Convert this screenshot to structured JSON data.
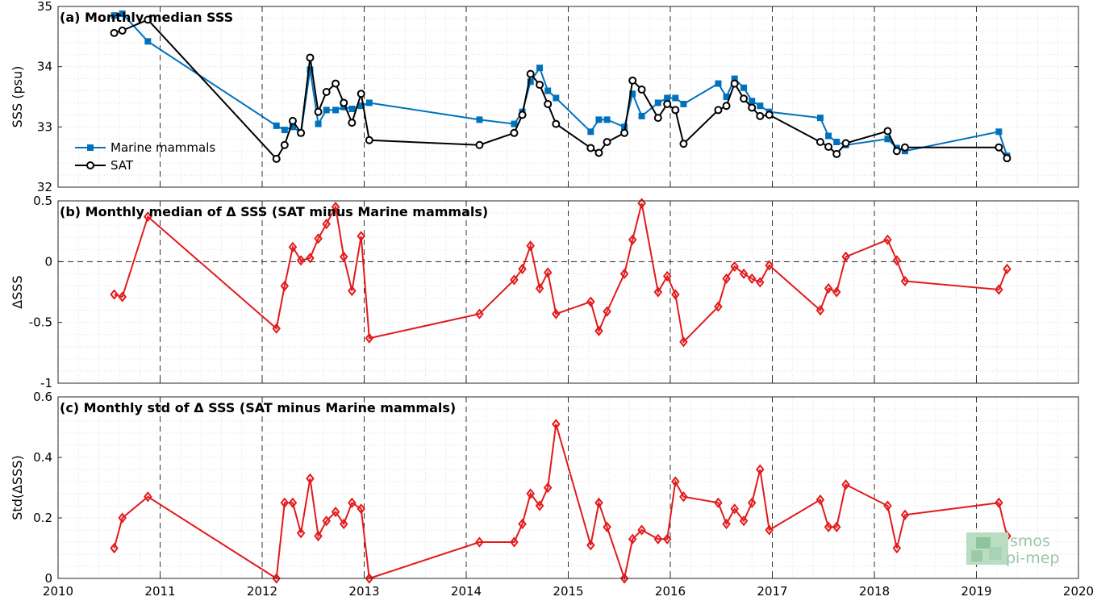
{
  "figure": {
    "watermark": {
      "line1": "smos",
      "line2": "pi-mep"
    }
  },
  "chart_data": [
    {
      "type": "line",
      "panel_id": "a",
      "title": "(a) Monthly median SSS",
      "xlabel": "",
      "ylabel": "SSS (psu)",
      "xlim": [
        2010,
        2020
      ],
      "ylim": [
        32,
        35
      ],
      "x_ticks": [
        2010,
        2011,
        2012,
        2013,
        2014,
        2015,
        2016,
        2017,
        2018,
        2019,
        2020
      ],
      "x_tick_labels": [
        "",
        "",
        "",
        "",
        "",
        "",
        "",
        "",
        "",
        "",
        ""
      ],
      "y_ticks": [
        32,
        33,
        34,
        35
      ],
      "y_tick_labels": [
        "32",
        "33",
        "34",
        "35"
      ],
      "year_boundaries": [
        2011,
        2012,
        2013,
        2014,
        2015,
        2016,
        2017,
        2018,
        2019
      ],
      "grid": "minor dotted",
      "legend_position": "lower-left",
      "series": [
        {
          "name": "Marine mammals",
          "color": "#0072bd",
          "marker": "filled-square",
          "x": [
            2010.55,
            2010.63,
            2010.88,
            2012.14,
            2012.22,
            2012.3,
            2012.38,
            2012.47,
            2012.55,
            2012.63,
            2012.72,
            2012.8,
            2012.88,
            2012.97,
            2013.05,
            2014.13,
            2014.47,
            2014.55,
            2014.63,
            2014.72,
            2014.8,
            2014.88,
            2015.22,
            2015.3,
            2015.38,
            2015.55,
            2015.63,
            2015.72,
            2015.88,
            2015.97,
            2016.05,
            2016.13,
            2016.47,
            2016.55,
            2016.63,
            2016.72,
            2016.8,
            2016.88,
            2016.97,
            2017.47,
            2017.55,
            2017.63,
            2017.72,
            2018.13,
            2018.22,
            2018.3,
            2019.22,
            2019.3
          ],
          "y": [
            34.85,
            34.88,
            34.42,
            33.02,
            32.95,
            33.0,
            32.9,
            33.95,
            33.05,
            33.28,
            33.28,
            33.33,
            33.3,
            33.35,
            33.4,
            33.12,
            33.05,
            33.25,
            33.75,
            33.98,
            33.6,
            33.48,
            32.92,
            33.12,
            33.12,
            33.0,
            33.55,
            33.18,
            33.4,
            33.48,
            33.48,
            33.38,
            33.72,
            33.5,
            33.8,
            33.65,
            33.43,
            33.35,
            33.25,
            33.15,
            32.85,
            32.75,
            32.7,
            32.8,
            32.65,
            32.6,
            32.92,
            32.52
          ]
        },
        {
          "name": "SAT",
          "color": "#000000",
          "marker": "open-circle",
          "x": [
            2010.55,
            2010.63,
            2010.88,
            2012.14,
            2012.22,
            2012.3,
            2012.38,
            2012.47,
            2012.55,
            2012.63,
            2012.72,
            2012.8,
            2012.88,
            2012.97,
            2013.05,
            2014.13,
            2014.47,
            2014.55,
            2014.63,
            2014.72,
            2014.8,
            2014.88,
            2015.22,
            2015.3,
            2015.38,
            2015.55,
            2015.63,
            2015.72,
            2015.88,
            2015.97,
            2016.05,
            2016.13,
            2016.47,
            2016.55,
            2016.63,
            2016.72,
            2016.8,
            2016.88,
            2016.97,
            2017.47,
            2017.55,
            2017.63,
            2017.72,
            2018.13,
            2018.22,
            2018.3,
            2019.22,
            2019.3
          ],
          "y": [
            34.56,
            34.6,
            34.78,
            32.47,
            32.7,
            33.1,
            32.9,
            34.15,
            33.25,
            33.58,
            33.72,
            33.4,
            33.07,
            33.55,
            32.78,
            32.7,
            32.9,
            33.2,
            33.88,
            33.7,
            33.38,
            33.05,
            32.65,
            32.57,
            32.75,
            32.9,
            33.77,
            33.62,
            33.15,
            33.38,
            33.28,
            32.72,
            33.28,
            33.35,
            33.72,
            33.47,
            33.32,
            33.18,
            33.2,
            32.75,
            32.67,
            32.55,
            32.73,
            32.93,
            32.6,
            32.66,
            32.66,
            32.48
          ]
        }
      ]
    },
    {
      "type": "line",
      "panel_id": "b",
      "title": "(b) Monthly median of Δ SSS (SAT minus Marine mammals)",
      "xlabel": "",
      "ylabel": "ΔSSS",
      "xlim": [
        2010,
        2020
      ],
      "ylim": [
        -1,
        0.5
      ],
      "x_ticks": [
        2010,
        2011,
        2012,
        2013,
        2014,
        2015,
        2016,
        2017,
        2018,
        2019,
        2020
      ],
      "x_tick_labels": [
        "",
        "",
        "",
        "",
        "",
        "",
        "",
        "",
        "",
        "",
        ""
      ],
      "y_ticks": [
        -1,
        -0.5,
        0,
        0.5
      ],
      "y_tick_labels": [
        "-1",
        "-0.5",
        "0",
        "0.5"
      ],
      "reference_line": 0,
      "year_boundaries": [
        2011,
        2012,
        2013,
        2014,
        2015,
        2016,
        2017,
        2018,
        2019
      ],
      "grid": "minor dotted",
      "series": [
        {
          "name": "",
          "color": "#e31a1c",
          "marker": "diamond",
          "x": [
            2010.55,
            2010.63,
            2010.88,
            2012.14,
            2012.22,
            2012.3,
            2012.38,
            2012.47,
            2012.55,
            2012.63,
            2012.72,
            2012.8,
            2012.88,
            2012.97,
            2013.05,
            2014.13,
            2014.47,
            2014.55,
            2014.63,
            2014.72,
            2014.8,
            2014.88,
            2015.22,
            2015.3,
            2015.38,
            2015.55,
            2015.63,
            2015.72,
            2015.88,
            2015.97,
            2016.05,
            2016.13,
            2016.47,
            2016.55,
            2016.63,
            2016.72,
            2016.8,
            2016.88,
            2016.97,
            2017.47,
            2017.55,
            2017.63,
            2017.72,
            2018.13,
            2018.22,
            2018.3,
            2019.22,
            2019.3
          ],
          "y": [
            -0.27,
            -0.29,
            0.37,
            -0.55,
            -0.2,
            0.12,
            0.01,
            0.03,
            0.19,
            0.31,
            0.45,
            0.04,
            -0.24,
            0.21,
            -0.63,
            -0.43,
            -0.15,
            -0.06,
            0.13,
            -0.22,
            -0.09,
            -0.43,
            -0.33,
            -0.57,
            -0.41,
            -0.1,
            0.18,
            0.48,
            -0.25,
            -0.12,
            -0.27,
            -0.66,
            -0.37,
            -0.14,
            -0.04,
            -0.1,
            -0.14,
            -0.17,
            -0.03,
            -0.4,
            -0.22,
            -0.25,
            0.04,
            0.18,
            0.01,
            -0.16,
            -0.23,
            -0.06
          ]
        }
      ]
    },
    {
      "type": "line",
      "panel_id": "c",
      "title": "(c) Monthly std of Δ SSS (SAT minus Marine mammals)",
      "xlabel": "",
      "ylabel": "Std(ΔSSS)",
      "xlim": [
        2010,
        2020
      ],
      "ylim": [
        0,
        0.6
      ],
      "x_ticks": [
        2010,
        2011,
        2012,
        2013,
        2014,
        2015,
        2016,
        2017,
        2018,
        2019,
        2020
      ],
      "x_tick_labels": [
        "2010",
        "2011",
        "2012",
        "2013",
        "2014",
        "2015",
        "2016",
        "2017",
        "2018",
        "2019",
        "2020"
      ],
      "y_ticks": [
        0,
        0.2,
        0.4,
        0.6
      ],
      "y_tick_labels": [
        "0",
        "0.2",
        "0.4",
        "0.6"
      ],
      "year_boundaries": [
        2011,
        2012,
        2013,
        2014,
        2015,
        2016,
        2017,
        2018,
        2019
      ],
      "grid": "minor dotted",
      "series": [
        {
          "name": "",
          "color": "#e31a1c",
          "marker": "diamond",
          "x": [
            2010.55,
            2010.63,
            2010.88,
            2012.14,
            2012.22,
            2012.3,
            2012.38,
            2012.47,
            2012.55,
            2012.63,
            2012.72,
            2012.8,
            2012.88,
            2012.97,
            2013.05,
            2014.13,
            2014.47,
            2014.55,
            2014.63,
            2014.72,
            2014.8,
            2014.88,
            2015.22,
            2015.3,
            2015.38,
            2015.55,
            2015.63,
            2015.72,
            2015.88,
            2015.97,
            2016.05,
            2016.13,
            2016.47,
            2016.55,
            2016.63,
            2016.72,
            2016.8,
            2016.88,
            2016.97,
            2017.47,
            2017.55,
            2017.63,
            2017.72,
            2018.13,
            2018.22,
            2018.3,
            2019.22,
            2019.3
          ],
          "y": [
            0.1,
            0.2,
            0.27,
            0.0,
            0.25,
            0.25,
            0.15,
            0.33,
            0.14,
            0.19,
            0.22,
            0.18,
            0.25,
            0.23,
            0.0,
            0.12,
            0.12,
            0.18,
            0.28,
            0.24,
            0.3,
            0.51,
            0.11,
            0.25,
            0.17,
            0.0,
            0.13,
            0.16,
            0.13,
            0.13,
            0.32,
            0.27,
            0.25,
            0.18,
            0.23,
            0.19,
            0.25,
            0.36,
            0.16,
            0.26,
            0.17,
            0.17,
            0.31,
            0.24,
            0.1,
            0.21,
            0.25,
            0.14
          ]
        }
      ]
    }
  ]
}
